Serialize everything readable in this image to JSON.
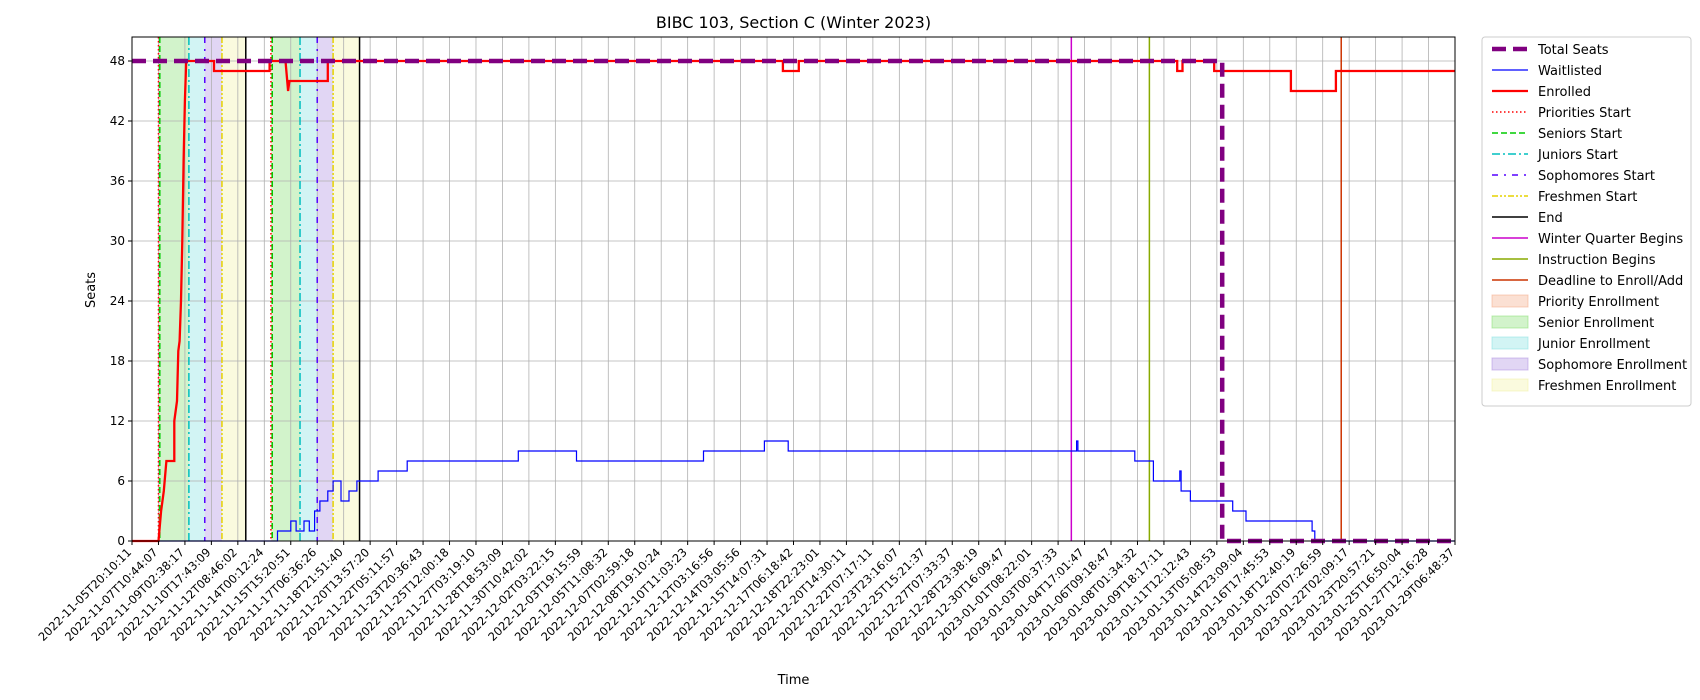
{
  "chart_data": {
    "type": "line",
    "title": "BIBC 103, Section C (Winter 2023)",
    "xlabel": "Time",
    "ylabel": "Seats",
    "ylim": [
      0,
      50.4
    ],
    "y_ticks": [
      0,
      6,
      12,
      18,
      24,
      30,
      36,
      42,
      48
    ],
    "grid": true,
    "legend_position": "outside-right",
    "x_categorical": true,
    "x_index_range": [
      0,
      50
    ],
    "x_tick_labels": [
      "2022-11-05T20:10:11",
      "2022-11-07T10:44:07",
      "2022-11-09T02:38:17",
      "2022-11-10T17:43:09",
      "2022-11-12T08:46:02",
      "2022-11-14T00:12:24",
      "2022-11-15T15:20:51",
      "2022-11-17T06:36:26",
      "2022-11-18T21:51:40",
      "2022-11-20T13:57:20",
      "2022-11-22T05:11:57",
      "2022-11-23T20:36:43",
      "2022-11-25T12:00:18",
      "2022-11-27T03:19:10",
      "2022-11-28T18:53:09",
      "2022-11-30T10:42:02",
      "2022-12-02T03:22:15",
      "2022-12-03T19:15:59",
      "2022-12-05T11:08:32",
      "2022-12-07T02:59:18",
      "2022-12-08T19:10:24",
      "2022-12-10T11:03:23",
      "2022-12-12T03:16:56",
      "2022-12-14T03:05:56",
      "2022-12-15T14:07:31",
      "2022-12-17T06:18:42",
      "2022-12-18T22:23:01",
      "2022-12-20T14:30:11",
      "2022-12-22T07:17:11",
      "2022-12-23T23:16:07",
      "2022-12-25T15:21:37",
      "2022-12-27T07:33:37",
      "2022-12-28T23:38:19",
      "2022-12-30T16:09:47",
      "2023-01-01T08:22:01",
      "2023-01-03T00:37:33",
      "2023-01-04T17:01:47",
      "2023-01-06T09:18:47",
      "2023-01-08T01:34:32",
      "2023-01-09T18:17:11",
      "2023-01-11T12:12:43",
      "2023-01-13T05:08:53",
      "2023-01-14T23:09:04",
      "2023-01-16T17:45:53",
      "2023-01-18T12:40:19",
      "2023-01-20T07:26:59",
      "2023-01-22T02:09:17",
      "2023-01-23T20:57:21",
      "2023-01-25T16:50:04",
      "2023-01-27T12:16:28",
      "2023-01-29T06:48:37"
    ],
    "series": [
      {
        "name": "Total Seats",
        "color": "#800080",
        "style": "dashed-thick",
        "points": [
          [
            0,
            48
          ],
          [
            41.2,
            48
          ],
          [
            41.2,
            0
          ],
          [
            50,
            0
          ]
        ]
      },
      {
        "name": "Waitlisted",
        "color": "#0000ff",
        "style": "solid-thin",
        "points": [
          [
            0,
            0
          ],
          [
            5.5,
            0
          ],
          [
            5.5,
            1
          ],
          [
            6.0,
            1
          ],
          [
            6.0,
            2
          ],
          [
            6.2,
            2
          ],
          [
            6.2,
            1
          ],
          [
            6.5,
            1
          ],
          [
            6.5,
            2
          ],
          [
            6.7,
            2
          ],
          [
            6.7,
            1
          ],
          [
            6.9,
            1
          ],
          [
            6.9,
            3
          ],
          [
            7.1,
            3
          ],
          [
            7.1,
            4
          ],
          [
            7.4,
            4
          ],
          [
            7.4,
            5
          ],
          [
            7.6,
            5
          ],
          [
            7.6,
            6
          ],
          [
            7.9,
            6
          ],
          [
            7.9,
            4
          ],
          [
            8.2,
            4
          ],
          [
            8.2,
            5
          ],
          [
            8.5,
            5
          ],
          [
            8.5,
            6
          ],
          [
            9.3,
            6
          ],
          [
            9.3,
            7
          ],
          [
            10.4,
            7
          ],
          [
            10.4,
            8
          ],
          [
            14.6,
            8
          ],
          [
            14.6,
            9
          ],
          [
            16.8,
            9
          ],
          [
            16.8,
            8
          ],
          [
            21.6,
            8
          ],
          [
            21.6,
            9
          ],
          [
            23.9,
            9
          ],
          [
            23.9,
            10
          ],
          [
            24.8,
            10
          ],
          [
            24.8,
            9
          ],
          [
            35.7,
            9
          ],
          [
            35.7,
            10
          ],
          [
            35.75,
            10
          ],
          [
            35.75,
            9
          ],
          [
            37.9,
            9
          ],
          [
            37.9,
            8
          ],
          [
            38.6,
            8
          ],
          [
            38.6,
            6
          ],
          [
            39.6,
            6
          ],
          [
            39.6,
            7
          ],
          [
            39.65,
            7
          ],
          [
            39.65,
            5
          ],
          [
            40.0,
            5
          ],
          [
            40.0,
            4
          ],
          [
            41.6,
            4
          ],
          [
            41.6,
            3
          ],
          [
            42.1,
            3
          ],
          [
            42.1,
            2
          ],
          [
            44.6,
            2
          ],
          [
            44.6,
            1
          ],
          [
            44.7,
            1
          ],
          [
            44.7,
            0
          ],
          [
            50,
            0
          ]
        ]
      },
      {
        "name": "Enrolled",
        "color": "#ff0000",
        "style": "solid-thick",
        "points": [
          [
            0,
            0
          ],
          [
            1.0,
            0
          ],
          [
            1.1,
            3
          ],
          [
            1.2,
            5
          ],
          [
            1.3,
            8
          ],
          [
            1.6,
            8
          ],
          [
            1.6,
            12
          ],
          [
            1.7,
            14
          ],
          [
            1.75,
            19
          ],
          [
            1.8,
            20
          ],
          [
            1.85,
            24
          ],
          [
            1.9,
            30
          ],
          [
            1.95,
            38
          ],
          [
            2.0,
            44
          ],
          [
            2.05,
            48
          ],
          [
            3.1,
            48
          ],
          [
            3.1,
            47
          ],
          [
            5.2,
            47
          ],
          [
            5.2,
            48
          ],
          [
            5.8,
            48
          ],
          [
            5.9,
            45
          ],
          [
            5.95,
            46
          ],
          [
            7.4,
            46
          ],
          [
            7.4,
            48
          ],
          [
            24.6,
            48
          ],
          [
            24.6,
            47
          ],
          [
            25.2,
            47
          ],
          [
            25.2,
            48
          ],
          [
            39.5,
            48
          ],
          [
            39.5,
            47
          ],
          [
            39.7,
            47
          ],
          [
            39.7,
            48
          ],
          [
            40.9,
            48
          ],
          [
            40.9,
            47
          ],
          [
            43.8,
            47
          ],
          [
            43.8,
            45
          ],
          [
            45.5,
            45
          ],
          [
            45.5,
            47
          ],
          [
            50,
            47
          ]
        ]
      }
    ],
    "event_lines": [
      {
        "name": "Priorities Start",
        "color": "#ff0000",
        "style": "dotted",
        "x": [
          1.0,
          5.25
        ]
      },
      {
        "name": "Seniors Start",
        "color": "#00cc00",
        "style": "dashed",
        "x": [
          1.05,
          5.3
        ]
      },
      {
        "name": "Juniors Start",
        "color": "#00bfbf",
        "style": "dashdot",
        "x": [
          2.15,
          6.35
        ]
      },
      {
        "name": "Sophomores Start",
        "color": "#5500ff",
        "style": "dashdot-sparse",
        "x": [
          2.75,
          7.0
        ]
      },
      {
        "name": "Freshmen Start",
        "color": "#e6d200",
        "style": "dashdotdot",
        "x": [
          3.4,
          7.6
        ]
      },
      {
        "name": "End",
        "color": "#000000",
        "style": "solid",
        "x": [
          4.3,
          8.6
        ]
      },
      {
        "name": "Winter Quarter Begins",
        "color": "#cc00cc",
        "style": "solid",
        "x": [
          35.5
        ]
      },
      {
        "name": "Instruction Begins",
        "color": "#88aa00",
        "style": "solid",
        "x": [
          38.45
        ]
      },
      {
        "name": "Deadline to Enroll/Add",
        "color": "#cc3300",
        "style": "solid",
        "x": [
          45.7
        ]
      }
    ],
    "periods": [
      {
        "name": "Priority Enrollment",
        "color": "#f4a582",
        "spans": [
          [
            1.0,
            1.05
          ],
          [
            5.25,
            5.3
          ]
        ]
      },
      {
        "name": "Senior Enrollment",
        "color": "#7fdd6a",
        "spans": [
          [
            1.05,
            2.15
          ],
          [
            5.3,
            6.35
          ]
        ]
      },
      {
        "name": "Junior Enrollment",
        "color": "#7fe0e0",
        "spans": [
          [
            2.15,
            2.75
          ],
          [
            6.35,
            7.0
          ]
        ]
      },
      {
        "name": "Sophomore Enrollment",
        "color": "#a98ae0",
        "spans": [
          [
            2.75,
            3.4
          ],
          [
            7.0,
            7.6
          ]
        ]
      },
      {
        "name": "Freshmen Enrollment",
        "color": "#f0f0a0",
        "spans": [
          [
            3.4,
            4.3
          ],
          [
            7.6,
            8.6
          ]
        ]
      }
    ],
    "legend": [
      {
        "label": "Total Seats",
        "kind": "line",
        "color": "#800080",
        "style": "dashed-thick"
      },
      {
        "label": "Waitlisted",
        "kind": "line",
        "color": "#0000ff",
        "style": "solid-thin"
      },
      {
        "label": "Enrolled",
        "kind": "line",
        "color": "#ff0000",
        "style": "solid-thick"
      },
      {
        "label": "Priorities Start",
        "kind": "line",
        "color": "#ff0000",
        "style": "dotted"
      },
      {
        "label": "Seniors Start",
        "kind": "line",
        "color": "#00cc00",
        "style": "dashed"
      },
      {
        "label": "Juniors Start",
        "kind": "line",
        "color": "#00bfbf",
        "style": "dashdot"
      },
      {
        "label": "Sophomores Start",
        "kind": "line",
        "color": "#5500ff",
        "style": "dashdot-sparse"
      },
      {
        "label": "Freshmen Start",
        "kind": "line",
        "color": "#e6d200",
        "style": "dashdotdot"
      },
      {
        "label": "End",
        "kind": "line",
        "color": "#000000",
        "style": "solid"
      },
      {
        "label": "Winter Quarter Begins",
        "kind": "line",
        "color": "#cc00cc",
        "style": "solid"
      },
      {
        "label": "Instruction Begins",
        "kind": "line",
        "color": "#88aa00",
        "style": "solid"
      },
      {
        "label": "Deadline to Enroll/Add",
        "kind": "line",
        "color": "#cc3300",
        "style": "solid"
      },
      {
        "label": "Priority Enrollment",
        "kind": "patch",
        "color": "#f4a582"
      },
      {
        "label": "Senior Enrollment",
        "kind": "patch",
        "color": "#7fdd6a"
      },
      {
        "label": "Junior Enrollment",
        "kind": "patch",
        "color": "#7fe0e0"
      },
      {
        "label": "Sophomore Enrollment",
        "kind": "patch",
        "color": "#a98ae0"
      },
      {
        "label": "Freshmen Enrollment",
        "kind": "patch",
        "color": "#f0f0a0"
      }
    ]
  }
}
